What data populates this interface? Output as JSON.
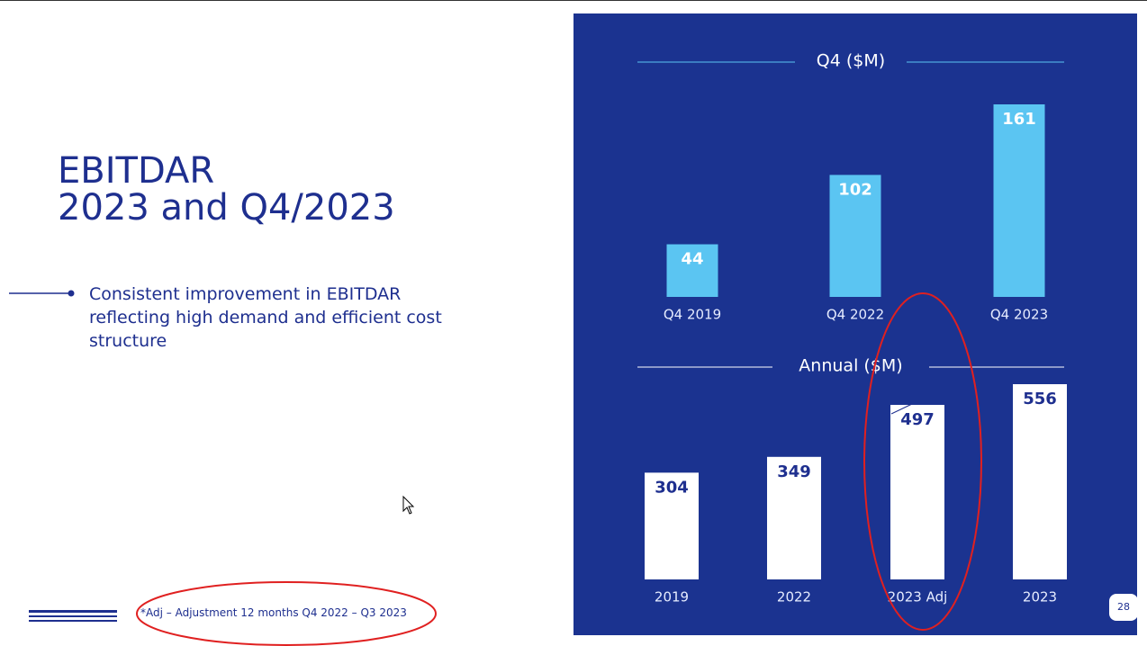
{
  "slide": {
    "title_lines": [
      "EBITDAR",
      "2023 and Q4/2023"
    ],
    "bullet": "Consistent improvement in EBITDAR reflecting high demand and efficient cost structure",
    "footnote": "*Adj – Adjustment 12 months Q4 2022 – Q3 2023",
    "page_number": "28"
  },
  "chart_data": [
    {
      "type": "bar",
      "title": "Q4 ($M)",
      "categories": [
        "Q4 2019",
        "Q4 2022",
        "Q4 2023"
      ],
      "values": [
        44,
        102,
        161
      ],
      "color": "#5bc5f2"
    },
    {
      "type": "bar",
      "title": "Annual ($M)",
      "categories": [
        "2019",
        "2022",
        "2023 Adj",
        "2023"
      ],
      "values": [
        304,
        349,
        497,
        556
      ],
      "color": "#ffffff"
    }
  ]
}
